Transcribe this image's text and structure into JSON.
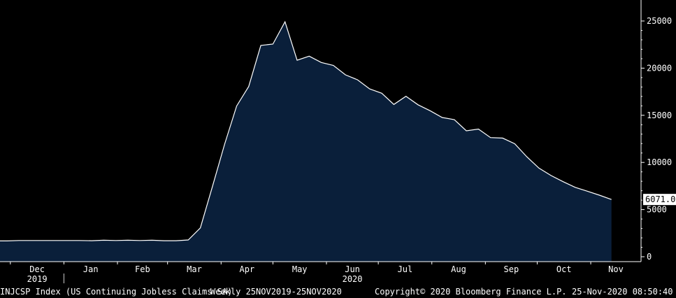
{
  "chart_data": {
    "type": "area",
    "x": [
      "2019-11-29",
      "2019-12-06",
      "2019-12-13",
      "2019-12-20",
      "2019-12-27",
      "2020-01-03",
      "2020-01-10",
      "2020-01-17",
      "2020-01-24",
      "2020-01-31",
      "2020-02-07",
      "2020-02-14",
      "2020-02-21",
      "2020-02-28",
      "2020-03-06",
      "2020-03-13",
      "2020-03-20",
      "2020-03-27",
      "2020-04-03",
      "2020-04-10",
      "2020-04-17",
      "2020-04-24",
      "2020-05-01",
      "2020-05-08",
      "2020-05-15",
      "2020-05-22",
      "2020-05-29",
      "2020-06-05",
      "2020-06-12",
      "2020-06-19",
      "2020-06-26",
      "2020-07-03",
      "2020-07-10",
      "2020-07-17",
      "2020-07-24",
      "2020-07-31",
      "2020-08-07",
      "2020-08-14",
      "2020-08-21",
      "2020-08-28",
      "2020-09-04",
      "2020-09-11",
      "2020-09-18",
      "2020-09-25",
      "2020-10-02",
      "2020-10-09",
      "2020-10-16",
      "2020-10-23",
      "2020-10-30",
      "2020-11-06",
      "2020-11-13"
    ],
    "values": [
      1680,
      1720,
      1720,
      1720,
      1720,
      1720,
      1720,
      1700,
      1750,
      1720,
      1750,
      1720,
      1750,
      1700,
      1700,
      1780,
      3060,
      7450,
      11910,
      15980,
      18060,
      22410,
      22550,
      24910,
      20840,
      21270,
      20600,
      20290,
      19290,
      18760,
      17800,
      17340,
      16150,
      17020,
      16110,
      15480,
      14760,
      14540,
      13350,
      13540,
      12630,
      12580,
      11980,
      10600,
      9400,
      8610,
      7960,
      7360,
      6950,
      6530,
      6071
    ],
    "ylim": [
      0,
      26000
    ],
    "y_ticks": [
      "0",
      "5000",
      "10000",
      "15000",
      "20000",
      "25000"
    ],
    "x_month_labels": [
      "Dec",
      "Jan",
      "Feb",
      "Mar",
      "Apr",
      "May",
      "Jun",
      "Jul",
      "Aug",
      "Sep",
      "Oct",
      "Nov"
    ],
    "x_year_labels": [
      {
        "label": "2019",
        "month": "Dec"
      },
      {
        "label": "2020",
        "month": "Jun"
      }
    ],
    "last_value_label": "6071.0",
    "grid": false,
    "colors": {
      "fill": "#0a1f3a",
      "line": "#ffffff",
      "background": "#000000",
      "axis": "#ffffff",
      "label_bg": "#ffffff",
      "label_text": "#000000"
    }
  },
  "footer": {
    "description": "INJCSP Index (US Continuing Jobless Claims SA)",
    "period": "Weekly 25NOV2019-25NOV2020",
    "copyright": "Copyright© 2020 Bloomberg Finance L.P.",
    "timestamp": "25-Nov-2020 08:50:40"
  }
}
